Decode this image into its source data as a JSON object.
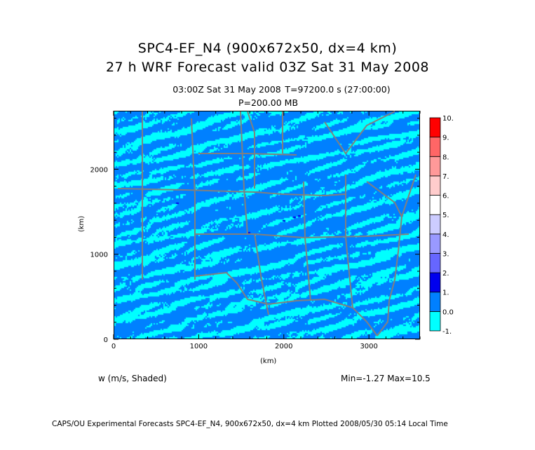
{
  "title_line1": "SPC4-EF_N4 (900x672x50, dx=4 km)",
  "title_line2": "27 h WRF Forecast valid 03Z Sat 31 May 2008",
  "subtitle_time": "03:00Z Sat 31 May 2008",
  "subtitle_t": "T=97200.0 s (27:00:00)",
  "subtitle_level": "P=200.00 MB",
  "x_axis": {
    "label": "(km)",
    "range": [
      0,
      3600
    ],
    "ticks": [
      "0",
      "1000",
      "2000",
      "3000"
    ]
  },
  "y_axis": {
    "label": "(km)",
    "range": [
      0,
      2688
    ],
    "ticks": [
      "0",
      "1000",
      "2000"
    ]
  },
  "field_label": "w (m/s, Shaded)",
  "minmax": "Min=-1.27 Max=10.5",
  "footer": "CAPS/OU Experimental Forecasts  SPC4-EF_N4, 900x672x50, dx=4 km  Plotted 2008/05/30 05:14 Local Time",
  "colorbar": {
    "labels": [
      "-1.",
      "0.0",
      "1.",
      "2.",
      "3.",
      "4.",
      "5.",
      "6.",
      "7.",
      "8.",
      "9.",
      "10."
    ],
    "colors": [
      "#00ffff",
      "#0080ff",
      "#0000ee",
      "#6666ff",
      "#9999ff",
      "#ccccff",
      "#ffffff",
      "#ffcccc",
      "#ff9999",
      "#ff6666",
      "#ff0000"
    ]
  },
  "map_colors": {
    "border": "#808080",
    "low": "#0080ff",
    "high": "#00ffff"
  }
}
